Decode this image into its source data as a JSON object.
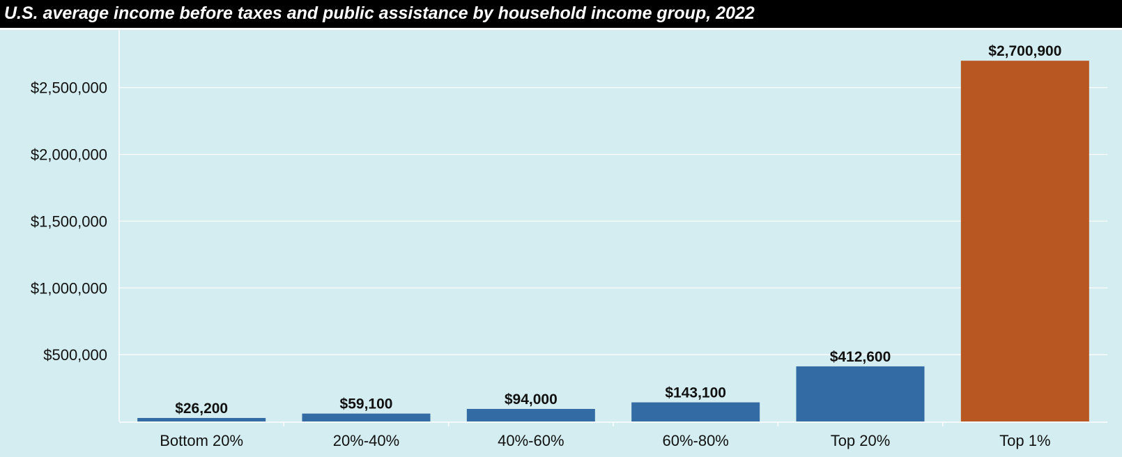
{
  "chart_data": {
    "type": "bar",
    "title": "U.S. average income before taxes and public assistance by household income group, 2022",
    "xlabel": "",
    "ylabel": "",
    "categories": [
      "Bottom 20%",
      "20%-40%",
      "40%-60%",
      "60%-80%",
      "Top 20%",
      "Top 1%"
    ],
    "values": [
      26200,
      59100,
      94000,
      143100,
      412600,
      2700900
    ],
    "data_labels": [
      "$26,200",
      "$59,100",
      "$94,000",
      "$143,100",
      "$412,600",
      "$2,700,900"
    ],
    "bar_colors": [
      "#336ca4",
      "#336ca4",
      "#336ca4",
      "#336ca4",
      "#336ca4",
      "#b85722"
    ],
    "ylim": [
      0,
      2900000
    ],
    "yticks": [
      500000,
      1000000,
      1500000,
      2000000,
      2500000
    ],
    "ytick_labels": [
      "$500,000",
      "$1,000,000",
      "$1,500,000",
      "$2,000,000",
      "$2,500,000"
    ],
    "grid": true,
    "legend": "none",
    "colors": {
      "title_bar": "#000000",
      "title_text": "#ffffff",
      "plot_background": "#d4edf0",
      "gridline": "#ffffff",
      "text": "#111111"
    }
  }
}
